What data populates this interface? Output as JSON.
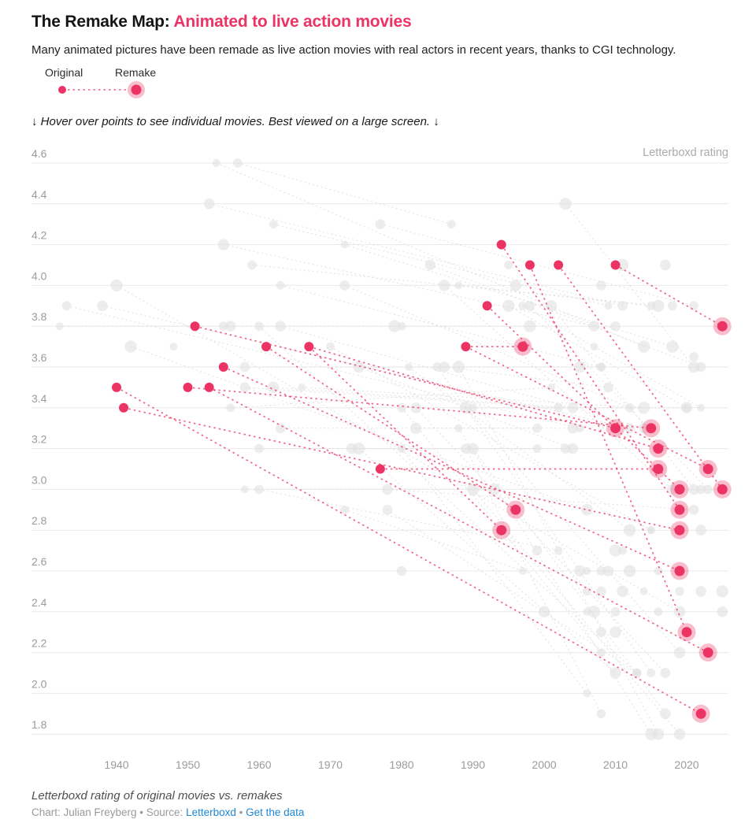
{
  "header": {
    "title_prefix": "The Remake Map: ",
    "title_highlight": "Animated to live action movies",
    "subtitle": "Many animated pictures have been remade as live action movies with real actors in recent years, thanks to CGI technology."
  },
  "legend": {
    "original_label": "Original",
    "remake_label": "Remake"
  },
  "note": "↓ Hover over points to see individual movies. Best viewed on a large screen. ↓",
  "footer": {
    "caption": "Letterboxd rating of original movies vs. remakes",
    "credit_prefix": "Chart: Julian Freyberg • Source: ",
    "source_link": "Letterboxd",
    "separator": " • ",
    "data_link": "Get the data"
  },
  "colors": {
    "accent": "#EC3464",
    "accent_halo_opacity": 0.32,
    "link_blue": "#1E88D2",
    "gray_dot": "#E1E1E1",
    "gray_line": "#E0E0E0",
    "grid": "#E9E9E9",
    "tick": "#9B9B9B",
    "axis_title": "#ABABAB"
  },
  "chart_data": {
    "type": "scatter",
    "title": "The Remake Map: Animated to live action movies",
    "xlabel": "",
    "ylabel": "Letterboxd rating",
    "x_ticks": [
      1940,
      1950,
      1960,
      1970,
      1980,
      1990,
      2000,
      2010,
      2020
    ],
    "y_ticks": [
      4.6,
      4.4,
      4.2,
      4.0,
      3.8,
      3.6,
      3.4,
      3.2,
      3.0,
      2.8,
      2.6,
      2.4,
      2.2,
      2.0,
      1.8
    ],
    "xlim": [
      1928,
      2026
    ],
    "ylim": [
      1.7,
      4.7
    ],
    "grid": "horizontal",
    "legend_position": "top-left",
    "highlighted_pairs": [
      {
        "original": [
          1940,
          3.5
        ],
        "remakes": [
          [
            2022,
            1.9
          ]
        ]
      },
      {
        "original": [
          1941,
          3.4
        ],
        "remakes": [
          [
            2019,
            2.8
          ]
        ]
      },
      {
        "original": [
          1950,
          3.5
        ],
        "remakes": [
          [
            2015,
            3.3
          ]
        ]
      },
      {
        "original": [
          1951,
          3.8
        ],
        "remakes": [
          [
            2010,
            3.3
          ]
        ]
      },
      {
        "original": [
          1953,
          3.5
        ],
        "remakes": [
          [
            2023,
            2.2
          ]
        ]
      },
      {
        "original": [
          1955,
          3.6
        ],
        "remakes": [
          [
            2019,
            2.6
          ]
        ]
      },
      {
        "original": [
          1961,
          3.7
        ],
        "remakes": [
          [
            1996,
            2.9
          ]
        ]
      },
      {
        "original": [
          1967,
          3.7
        ],
        "remakes": [
          [
            1994,
            2.8
          ],
          [
            2016,
            3.2
          ]
        ]
      },
      {
        "original": [
          1977,
          3.1
        ],
        "remakes": [
          [
            2016,
            3.1
          ]
        ]
      },
      {
        "original": [
          1989,
          3.7
        ],
        "remakes": [
          [
            1997,
            3.7
          ],
          [
            2023,
            3.1
          ]
        ]
      },
      {
        "original": [
          1992,
          3.9
        ],
        "remakes": [
          [
            2019,
            3.0
          ]
        ]
      },
      {
        "original": [
          1994,
          4.2
        ],
        "remakes": [
          [
            2019,
            2.9
          ]
        ]
      },
      {
        "original": [
          1998,
          4.1
        ],
        "remakes": [
          [
            2020,
            2.3
          ]
        ]
      },
      {
        "original": [
          2002,
          4.1
        ],
        "remakes": [
          [
            2025,
            3.0
          ]
        ]
      },
      {
        "original": [
          2010,
          4.1
        ],
        "remakes": [
          [
            2025,
            3.8
          ]
        ]
      }
    ],
    "background_pairs": [
      {
        "original": [
          1954,
          4.6
        ],
        "remake": [
          2014,
          3.7
        ]
      },
      {
        "original": [
          1957,
          4.6
        ],
        "remake": [
          1987,
          4.3
        ]
      },
      {
        "original": [
          1953,
          4.4
        ],
        "remake": [
          2011,
          3.9
        ]
      },
      {
        "original": [
          2003,
          4.4
        ],
        "remake": [
          2021,
          3.6
        ]
      },
      {
        "original": [
          1962,
          4.3
        ],
        "remake": [
          2009,
          3.9
        ]
      },
      {
        "original": [
          1977,
          4.3
        ],
        "remake": [
          2021,
          3.9
        ]
      },
      {
        "original": [
          1955,
          4.2
        ],
        "remake": [
          2007,
          3.8
        ]
      },
      {
        "original": [
          1972,
          4.2
        ],
        "remake": [
          2018,
          3.7
        ]
      },
      {
        "original": [
          1959,
          4.1
        ],
        "remake": [
          2015,
          3.9
        ]
      },
      {
        "original": [
          1984,
          4.1
        ],
        "remake": [
          2022,
          3.6
        ]
      },
      {
        "original": [
          1940,
          4.0
        ],
        "remake": [
          2019,
          2.4
        ]
      },
      {
        "original": [
          1963,
          4.0
        ],
        "remake": [
          2008,
          3.6
        ]
      },
      {
        "original": [
          1972,
          4.0
        ],
        "remake": [
          2012,
          3.4
        ]
      },
      {
        "original": [
          1986,
          4.0
        ],
        "remake": [
          2018,
          3.0
        ]
      },
      {
        "original": [
          1988,
          4.0
        ],
        "remake": [
          2016,
          3.9
        ]
      },
      {
        "original": [
          1933,
          3.9
        ],
        "remake": [
          2005,
          3.3
        ]
      },
      {
        "original": [
          1938,
          3.9
        ],
        "remake": [
          2012,
          3.3
        ]
      },
      {
        "original": [
          1995,
          3.9
        ],
        "remake": [
          2020,
          3.4
        ]
      },
      {
        "original": [
          1997,
          3.9
        ],
        "remake": [
          2022,
          3.4
        ]
      },
      {
        "original": [
          1998,
          3.9
        ],
        "remake": [
          2023,
          3.0
        ]
      },
      {
        "original": [
          2001,
          3.9
        ],
        "remake": [
          2021,
          3.0
        ]
      },
      {
        "original": [
          1932,
          3.8
        ],
        "remake": [
          1998,
          3.8
        ]
      },
      {
        "original": [
          1960,
          3.8
        ],
        "remake": [
          2013,
          2.1
        ]
      },
      {
        "original": [
          1963,
          3.8
        ],
        "remake": [
          2014,
          3.3
        ]
      },
      {
        "original": [
          1942,
          3.7
        ],
        "remake": [
          2006,
          2.9
        ]
      },
      {
        "original": [
          1970,
          3.7
        ],
        "remake": [
          2015,
          2.8
        ]
      },
      {
        "original": [
          1958,
          3.6
        ],
        "remake": [
          2008,
          3.6
        ]
      },
      {
        "original": [
          1974,
          3.6
        ],
        "remake": [
          2004,
          3.2
        ]
      },
      {
        "original": [
          1981,
          3.6
        ],
        "remake": [
          2012,
          2.8
        ]
      },
      {
        "original": [
          1985,
          3.6
        ],
        "remake": [
          2015,
          2.1
        ]
      },
      {
        "original": [
          1986,
          3.6
        ],
        "remake": [
          2009,
          3.5
        ]
      },
      {
        "original": [
          1988,
          3.6
        ],
        "remake": [
          2016,
          1.8
        ]
      },
      {
        "original": [
          1956,
          3.4
        ],
        "remake": [
          2001,
          3.5
        ]
      },
      {
        "original": [
          1958,
          3.5
        ],
        "remake": [
          2002,
          3.4
        ]
      },
      {
        "original": [
          1962,
          3.5
        ],
        "remake": [
          2004,
          3.4
        ]
      },
      {
        "original": [
          1966,
          3.5
        ],
        "remake": [
          2014,
          3.4
        ]
      },
      {
        "original": [
          1980,
          3.4
        ],
        "remake": [
          2008,
          2.2
        ]
      },
      {
        "original": [
          1982,
          3.4
        ],
        "remake": [
          2017,
          2.1
        ]
      },
      {
        "original": [
          1989,
          3.4
        ],
        "remake": [
          2019,
          2.2
        ]
      },
      {
        "original": [
          1990,
          3.4
        ],
        "remake": [
          2020,
          3.4
        ]
      },
      {
        "original": [
          1963,
          3.3
        ],
        "remake": [
          1999,
          3.3
        ]
      },
      {
        "original": [
          1982,
          3.3
        ],
        "remake": [
          2004,
          3.3
        ]
      },
      {
        "original": [
          1988,
          3.3
        ],
        "remake": [
          2015,
          1.8
        ]
      },
      {
        "original": [
          1960,
          3.2
        ],
        "remake": [
          1999,
          3.2
        ]
      },
      {
        "original": [
          1973,
          3.2
        ],
        "remake": [
          2003,
          3.2
        ]
      },
      {
        "original": [
          1974,
          3.2
        ],
        "remake": [
          2010,
          2.1
        ]
      },
      {
        "original": [
          1980,
          3.2
        ],
        "remake": [
          2006,
          2.0
        ]
      },
      {
        "original": [
          1989,
          3.2
        ],
        "remake": [
          2008,
          1.9
        ]
      },
      {
        "original": [
          1990,
          3.2
        ],
        "remake": [
          2017,
          1.9
        ]
      },
      {
        "original": [
          1958,
          3.0
        ],
        "remake": [
          1993,
          3.0
        ]
      },
      {
        "original": [
          1960,
          3.0
        ],
        "remake": [
          2002,
          2.7
        ]
      },
      {
        "original": [
          1978,
          3.0
        ],
        "remake": [
          2021,
          2.9
        ]
      },
      {
        "original": [
          1990,
          3.0
        ],
        "remake": [
          2019,
          1.8
        ]
      },
      {
        "original": [
          1972,
          2.9
        ],
        "remake": [
          1997,
          2.6
        ]
      },
      {
        "original": [
          1978,
          2.9
        ],
        "remake": [
          2013,
          2.1
        ]
      }
    ],
    "background_points": [
      [
        1955,
        3.8
      ],
      [
        1956,
        3.8
      ],
      [
        1979,
        3.8
      ],
      [
        1980,
        3.8
      ],
      [
        2010,
        3.8
      ],
      [
        2005,
        3.6
      ],
      [
        2007,
        3.7
      ],
      [
        2018,
        3.9
      ],
      [
        2017,
        4.1
      ],
      [
        2011,
        4.1
      ],
      [
        1995,
        4.1
      ],
      [
        2008,
        4.0
      ],
      [
        1996,
        4.0
      ],
      [
        1948,
        3.7
      ],
      [
        2022,
        3.0
      ],
      [
        2022,
        2.8
      ],
      [
        2010,
        2.7
      ],
      [
        2011,
        2.7
      ],
      [
        1999,
        2.7
      ],
      [
        2005,
        2.6
      ],
      [
        2006,
        2.6
      ],
      [
        2008,
        2.6
      ],
      [
        2009,
        2.6
      ],
      [
        2012,
        2.6
      ],
      [
        2016,
        2.6
      ],
      [
        1980,
        2.6
      ],
      [
        2011,
        2.5
      ],
      [
        2014,
        2.5
      ],
      [
        2019,
        2.5
      ],
      [
        2022,
        2.5
      ],
      [
        2025,
        2.5
      ],
      [
        2006,
        2.5
      ],
      [
        2008,
        2.5
      ],
      [
        2000,
        2.4
      ],
      [
        2006,
        2.4
      ],
      [
        2010,
        2.4
      ],
      [
        2025,
        2.4
      ],
      [
        2007,
        2.4
      ],
      [
        2016,
        2.4
      ],
      [
        2008,
        2.3
      ],
      [
        2010,
        2.3
      ],
      [
        2015,
        2.8
      ],
      [
        2021,
        3.65
      ]
    ]
  }
}
